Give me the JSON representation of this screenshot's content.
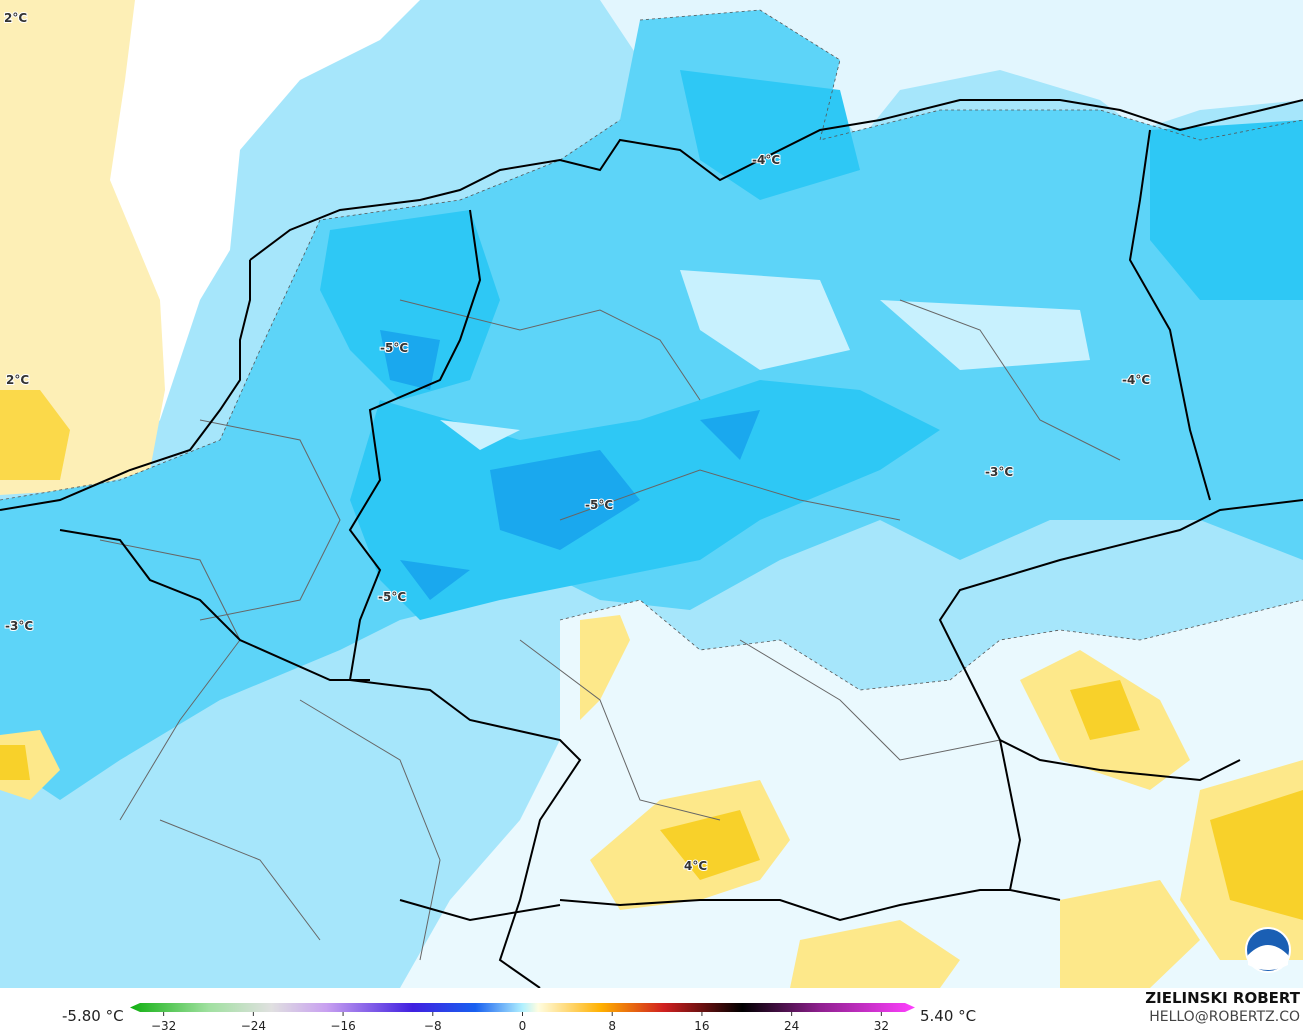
{
  "map": {
    "labels": [
      "2°C",
      "2°C",
      "-4°C",
      "-5°C",
      "-4°C",
      "-3°C",
      "-5°C",
      "-5°C",
      "-3°C",
      "4°C"
    ]
  },
  "legend": {
    "min_label": "-5.80 °C",
    "max_label": "5.40 °C",
    "range": [
      -35,
      35
    ],
    "ticks": [
      {
        "value": -32,
        "label": "−32"
      },
      {
        "value": -24,
        "label": "−24"
      },
      {
        "value": -16,
        "label": "−16"
      },
      {
        "value": -8,
        "label": "−8"
      },
      0,
      8,
      16,
      24,
      32
    ]
  },
  "footer": {
    "author": "ZIELINSKI ROBERT",
    "contact": "HELLO@ROBERTZ.CO"
  }
}
